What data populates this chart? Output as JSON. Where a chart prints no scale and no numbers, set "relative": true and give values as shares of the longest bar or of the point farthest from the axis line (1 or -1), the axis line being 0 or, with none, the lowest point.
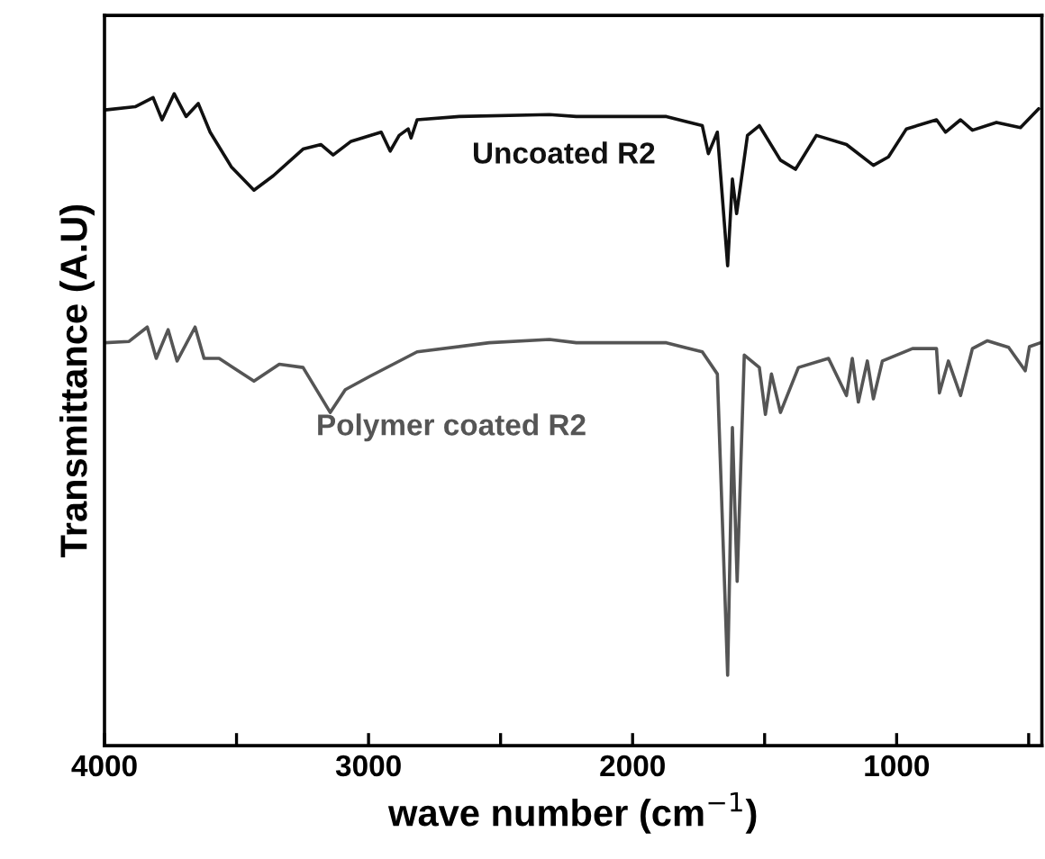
{
  "chart_data": {
    "type": "line",
    "relative": true,
    "xlabel": "wave number (cm$^{−1}$)",
    "ylabel": "Transmittance (A.U)",
    "xlim": [
      4000,
      450
    ],
    "xticks": [
      4000,
      {
        "value": 3500,
        "label": null
      },
      3000,
      {
        "value": 2500,
        "label": null
      },
      2000,
      {
        "value": 1500,
        "label": null
      },
      1000,
      {
        "value": 500,
        "label": null
      }
    ],
    "tick_labels": "x",
    "grid": false,
    "legend": false,
    "marker": "none",
    "line_style": "solid",
    "series": [
      {
        "name": "Uncoated R2",
        "color": "#111111",
        "x": [
          3998,
          3884,
          3816,
          3782,
          3736,
          3691,
          3645,
          3600,
          3520,
          3434,
          3361,
          3248,
          3180,
          3134,
          3066,
          2952,
          2918,
          2884,
          2850,
          2839,
          2816,
          2656,
          2315,
          2213,
          1872,
          1736,
          1713,
          1679,
          1640,
          1622,
          1606,
          1565,
          1520,
          1440,
          1383,
          1304,
          1190,
          1088,
          1031,
          963,
          849,
          815,
          758,
          713,
          622,
          531,
          462
        ],
        "values": [
          0.975,
          0.98,
          0.994,
          0.96,
          1,
          0.965,
          0.985,
          0.941,
          0.888,
          0.852,
          0.874,
          0.915,
          0.922,
          0.906,
          0.927,
          0.941,
          0.912,
          0.936,
          0.946,
          0.932,
          0.96,
          0.965,
          0.968,
          0.965,
          0.965,
          0.951,
          0.908,
          0.941,
          0.736,
          0.869,
          0.816,
          0.936,
          0.951,
          0.898,
          0.884,
          0.936,
          0.922,
          0.89,
          0.903,
          0.946,
          0.96,
          0.941,
          0.96,
          0.944,
          0.956,
          0.948,
          0.977
        ]
      },
      {
        "name": "Polymer coated R2",
        "color": "#555555",
        "x": [
          3998,
          3907,
          3838,
          3804,
          3759,
          3725,
          3657,
          3623,
          3566,
          3434,
          3338,
          3248,
          3145,
          3088,
          2997,
          2816,
          2543,
          2315,
          2213,
          1872,
          1736,
          1679,
          1640,
          1622,
          1604,
          1577,
          1520,
          1497,
          1474,
          1440,
          1372,
          1258,
          1190,
          1168,
          1145,
          1111,
          1088,
          1054,
          940,
          849,
          838,
          804,
          758,
          713,
          656,
          576,
          513,
          497,
          455
        ],
        "values": [
          0.618,
          0.62,
          0.642,
          0.594,
          0.638,
          0.59,
          0.642,
          0.594,
          0.594,
          0.559,
          0.585,
          0.58,
          0.511,
          0.546,
          0.566,
          0.604,
          0.618,
          0.623,
          0.618,
          0.618,
          0.604,
          0.57,
          0.108,
          0.488,
          0.252,
          0.599,
          0.58,
          0.508,
          0.57,
          0.511,
          0.58,
          0.594,
          0.537,
          0.594,
          0.527,
          0.59,
          0.532,
          0.59,
          0.609,
          0.609,
          0.541,
          0.59,
          0.537,
          0.609,
          0.621,
          0.611,
          0.575,
          0.612,
          0.618
        ]
      }
    ]
  }
}
